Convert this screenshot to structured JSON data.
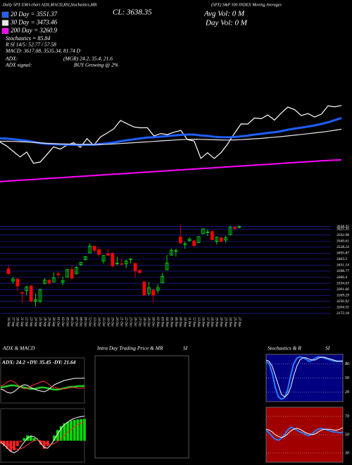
{
  "header": {
    "left": "Daily SPX EMA chart ADX,MACD,RSI,Stochastics,MR",
    "close": "CL: 3638.35",
    "right": "(SPX) S&P 500 INDEX Moving Averages",
    "avg_vol": "Avg Vol: 0  M",
    "day_vol": "Day Vol: 0  M",
    "stochastics": "Stochastics = 85.84",
    "rsi": "R SI 14/5: 52.77 / 57.58",
    "macd": "MACD: 3617.08, 3535.34, 81.74  D",
    "adx_label": "ADX:",
    "adx_values": "(MGR) 24.2, 35.4, 21.6",
    "adx_signal_label": "ADX  signal:",
    "adx_signal": "BUY Growing @ 2%"
  },
  "intraday": {
    "title": "Intra Day Trading Price  & MR",
    "title_suffix": "SI"
  },
  "chart_data": [
    {
      "type": "line",
      "ylim": [
        3050,
        4370
      ],
      "series": [
        {
          "color": "#ffffff",
          "values": [
            3385,
            3357,
            3319,
            3281,
            3315,
            3237,
            3246,
            3298,
            3351,
            3335,
            3363,
            3380,
            3348,
            3408,
            3361,
            3419,
            3447,
            3477,
            3534,
            3511,
            3489,
            3483,
            3484,
            3427,
            3443,
            3436,
            3453,
            3465,
            3401,
            3391,
            3271,
            3310,
            3270,
            3310,
            3370,
            3443,
            3510,
            3509,
            3551,
            3546,
            3572,
            3537,
            3585,
            3627,
            3610,
            3568,
            3582,
            3558,
            3578,
            3635,
            3629,
            3638
          ]
        },
        {
          "name": "20 Day = 3551.37",
          "color": "#1e5fff",
          "values": [
            3410,
            3408,
            3404,
            3398,
            3393,
            3385,
            3377,
            3372,
            3370,
            3368,
            3366,
            3366,
            3364,
            3366,
            3366,
            3370,
            3375,
            3381,
            3390,
            3397,
            3403,
            3410,
            3415,
            3418,
            3422,
            3426,
            3430,
            3434,
            3436,
            3436,
            3430,
            3427,
            3421,
            3418,
            3417,
            3419,
            3424,
            3429,
            3436,
            3441,
            3448,
            3452,
            3460,
            3470,
            3478,
            3484,
            3492,
            3500,
            3510,
            3522,
            3536,
            3551.37
          ]
        },
        {
          "name": "30 Day = 3473.46",
          "color": "#e8e8e8",
          "values": [
            3390,
            3390,
            3389,
            3387,
            3385,
            3382,
            3378,
            3375,
            3373,
            3371,
            3370,
            3369,
            3368,
            3368,
            3367,
            3368,
            3369,
            3371,
            3374,
            3377,
            3380,
            3383,
            3386,
            3389,
            3392,
            3395,
            3398,
            3401,
            3403,
            3404,
            3403,
            3402,
            3400,
            3399,
            3398,
            3399,
            3401,
            3404,
            3407,
            3410,
            3414,
            3418,
            3422,
            3427,
            3432,
            3437,
            3442,
            3448,
            3453,
            3459,
            3466,
            3473.46
          ]
        },
        {
          "name": "200 Day = 3260.9",
          "color": "#ff00ff",
          "values": [
            3110,
            3113,
            3116,
            3119,
            3122,
            3125,
            3128,
            3131,
            3134,
            3137,
            3140,
            3143,
            3146,
            3149,
            3152,
            3155,
            3158,
            3161,
            3164,
            3167,
            3170,
            3173,
            3176,
            3179,
            3182,
            3185,
            3188,
            3191,
            3194,
            3197,
            3200,
            3203,
            3206,
            3209,
            3212,
            3215,
            3218,
            3221,
            3224,
            3227,
            3230,
            3233,
            3236,
            3239,
            3242,
            3245,
            3248,
            3251,
            3254,
            3257,
            3259,
            3260.9
          ]
        }
      ]
    },
    {
      "type": "candlestick",
      "categories": [
        "16 Sep",
        "17 Sep",
        "18 Sep",
        "21 Sep",
        "22 Sep",
        "23 Sep",
        "24 Sep",
        "25 Sep",
        "28 Sep",
        "29 Sep",
        "30 Sep",
        "01 Oct",
        "02 Oct",
        "05 Oct",
        "06 Oct",
        "07 Oct",
        "08 Oct",
        "09 Oct",
        "12 Oct",
        "13 Oct",
        "14 Oct",
        "15 Oct",
        "16 Oct",
        "19 Oct",
        "20 Oct",
        "21 Oct",
        "22 Oct",
        "23 Oct",
        "26 Oct",
        "27 Oct",
        "28 Oct",
        "29 Oct",
        "30 Oct",
        "02 Nov",
        "03 Nov",
        "04 Nov",
        "05 Nov",
        "06 Nov",
        "09 Nov",
        "10 Nov",
        "11 Nov",
        "12 Nov",
        "13 Nov",
        "16 Nov",
        "17 Nov",
        "18 Nov",
        "19 Nov",
        "20 Nov",
        "23 Nov",
        "24 Nov",
        "25 Nov",
        "27 Nov"
      ],
      "open": [
        3411,
        3346,
        3357,
        3285,
        3295,
        3320,
        3236,
        3237,
        3333,
        3350,
        3341,
        3385,
        3339,
        3367,
        3408,
        3384,
        3434,
        3460,
        3497,
        3534,
        3515,
        3453,
        3493,
        3494,
        3439,
        3439,
        3438,
        3464,
        3441,
        3403,
        3342,
        3278,
        3297,
        3296,
        3336,
        3406,
        3485,
        3508,
        3583,
        3544,
        3563,
        3562,
        3552,
        3600,
        3610,
        3612,
        3559,
        3579,
        3566,
        3594,
        3635,
        3638
      ],
      "high": [
        3429,
        3368,
        3362,
        3285,
        3320,
        3323,
        3279,
        3306,
        3361,
        3357,
        3393,
        3397,
        3370,
        3409,
        3432,
        3426,
        3447,
        3482,
        3549,
        3534,
        3528,
        3485,
        3515,
        3502,
        3477,
        3464,
        3461,
        3466,
        3441,
        3409,
        3342,
        3342,
        3305,
        3330,
        3389,
        3486,
        3521,
        3521,
        3645,
        3557,
        3581,
        3570,
        3586,
        3628,
        3624,
        3619,
        3585,
        3581,
        3589,
        3642,
        3635,
        3644
      ],
      "low": [
        3384,
        3331,
        3293,
        3229,
        3270,
        3232,
        3209,
        3228,
        3329,
        3327,
        3340,
        3362,
        3323,
        3367,
        3354,
        3384,
        3428,
        3458,
        3496,
        3500,
        3478,
        3440,
        3483,
        3419,
        3431,
        3433,
        3415,
        3441,
        3364,
        3388,
        3268,
        3268,
        3233,
        3279,
        3336,
        3405,
        3484,
        3477,
        3547,
        3520,
        3557,
        3527,
        3552,
        3600,
        3588,
        3567,
        3543,
        3556,
        3552,
        3594,
        3617,
        3629
      ],
      "close": [
        3385,
        3357,
        3319,
        3281,
        3315,
        3237,
        3246,
        3298,
        3351,
        3335,
        3363,
        3380,
        3348,
        3408,
        3361,
        3419,
        3447,
        3477,
        3534,
        3511,
        3489,
        3483,
        3484,
        3427,
        3443,
        3436,
        3453,
        3465,
        3401,
        3391,
        3271,
        3310,
        3270,
        3310,
        3370,
        3443,
        3510,
        3509,
        3551,
        3546,
        3572,
        3537,
        3585,
        3627,
        3610,
        3568,
        3582,
        3558,
        3578,
        3635,
        3629,
        3638
      ],
      "up_color": "#00ff00",
      "down_color": "#ff0000",
      "ylim": [
        3160,
        3660
      ],
      "yticks": [
        3638.35,
        3625.35,
        3592.98,
        3560.61,
        3528.24,
        3495.87,
        3463.5,
        3431.14,
        3398.77,
        3366.4,
        3334.03,
        3301.66,
        3269.29,
        3236.92,
        3204.55,
        3172.18
      ],
      "grid": true,
      "grid_color": "#2626c8"
    },
    {
      "type": "line",
      "title": "ADX  & MACD",
      "annotation": "ADX: 24.2  +DY: 35.45  -DY: 21.64",
      "ylim": [
        0,
        60
      ],
      "series": [
        {
          "color": "#22cc22",
          "values": [
            22,
            23,
            24,
            25,
            25,
            24,
            23,
            22,
            21,
            20,
            20,
            21,
            22,
            22,
            21,
            20,
            19,
            19,
            20,
            21,
            22,
            23,
            23,
            24,
            24,
            24.2
          ]
        },
        {
          "color": "#ffffff",
          "values": [
            20,
            18,
            15,
            14,
            16,
            20,
            24,
            26,
            25,
            22,
            20,
            18,
            17,
            16,
            18,
            22,
            26,
            28,
            30,
            32,
            33,
            34,
            35,
            35,
            35,
            35.45
          ]
        },
        {
          "color": "#ff3030",
          "values": [
            24,
            26,
            30,
            32,
            30,
            26,
            22,
            20,
            21,
            24,
            26,
            28,
            30,
            31,
            28,
            24,
            22,
            21,
            20,
            20,
            21,
            22,
            22,
            21,
            21,
            21.64
          ]
        }
      ]
    },
    {
      "type": "bar",
      "ylim": [
        -80,
        120
      ],
      "values": [
        -10,
        -20,
        -30,
        -40,
        -35,
        -20,
        -5,
        10,
        20,
        18,
        10,
        0,
        -15,
        -30,
        -20,
        0,
        20,
        40,
        55,
        65,
        70,
        75,
        78,
        80,
        81,
        81.74
      ],
      "color": "#00dd00",
      "negative_color": "#ff2020",
      "series": [
        {
          "color": "#ffffff",
          "values": [
            -5,
            -15,
            -28,
            -40,
            -45,
            -38,
            -22,
            -5,
            10,
            18,
            15,
            5,
            -10,
            -25,
            -28,
            -15,
            5,
            25,
            45,
            60,
            70,
            78,
            84,
            88,
            90,
            92
          ]
        },
        {
          "color": "#ff3030",
          "values": [
            0,
            -5,
            -12,
            -20,
            -28,
            -32,
            -30,
            -24,
            -15,
            -6,
            0,
            2,
            0,
            -5,
            -12,
            -14,
            -10,
            -2,
            8,
            20,
            32,
            42,
            52,
            60,
            66,
            72
          ]
        }
      ]
    },
    {
      "type": "line",
      "title": "Stochastics & R",
      "title_suffix": "SI",
      "background": "#000080",
      "ylim": [
        0,
        100
      ],
      "yticks": [
        80,
        50,
        20
      ],
      "series": [
        {
          "color": "#2a7fff",
          "values": [
            85,
            80,
            60,
            30,
            10,
            5,
            8,
            25,
            55,
            80,
            92,
            95,
            93,
            90,
            85,
            88,
            92,
            95,
            94,
            92,
            90,
            88,
            86,
            85,
            86,
            85.84
          ]
        },
        {
          "color": "#ffffff",
          "values": [
            88,
            85,
            75,
            55,
            35,
            15,
            10,
            15,
            30,
            55,
            75,
            88,
            93,
            93,
            90,
            88,
            88,
            92,
            94,
            94,
            92,
            90,
            88,
            86,
            85,
            85
          ]
        }
      ]
    },
    {
      "type": "line",
      "background": "#a00000",
      "ylim": [
        20,
        80
      ],
      "yticks": [
        70,
        50,
        30
      ],
      "series": [
        {
          "color": "#2a7fff",
          "values": [
            55,
            52,
            48,
            45,
            44,
            46,
            50,
            55,
            58,
            57,
            55,
            53,
            52,
            50,
            49,
            51,
            54,
            56,
            57,
            56,
            55,
            54,
            53,
            53,
            52,
            52.77
          ]
        },
        {
          "color": "#ffffff",
          "values": [
            56,
            55,
            53,
            50,
            48,
            47,
            48,
            51,
            54,
            56,
            57,
            56,
            54,
            52,
            51,
            50,
            51,
            53,
            55,
            56,
            56,
            56,
            55,
            55,
            56,
            57.58
          ]
        }
      ]
    }
  ]
}
